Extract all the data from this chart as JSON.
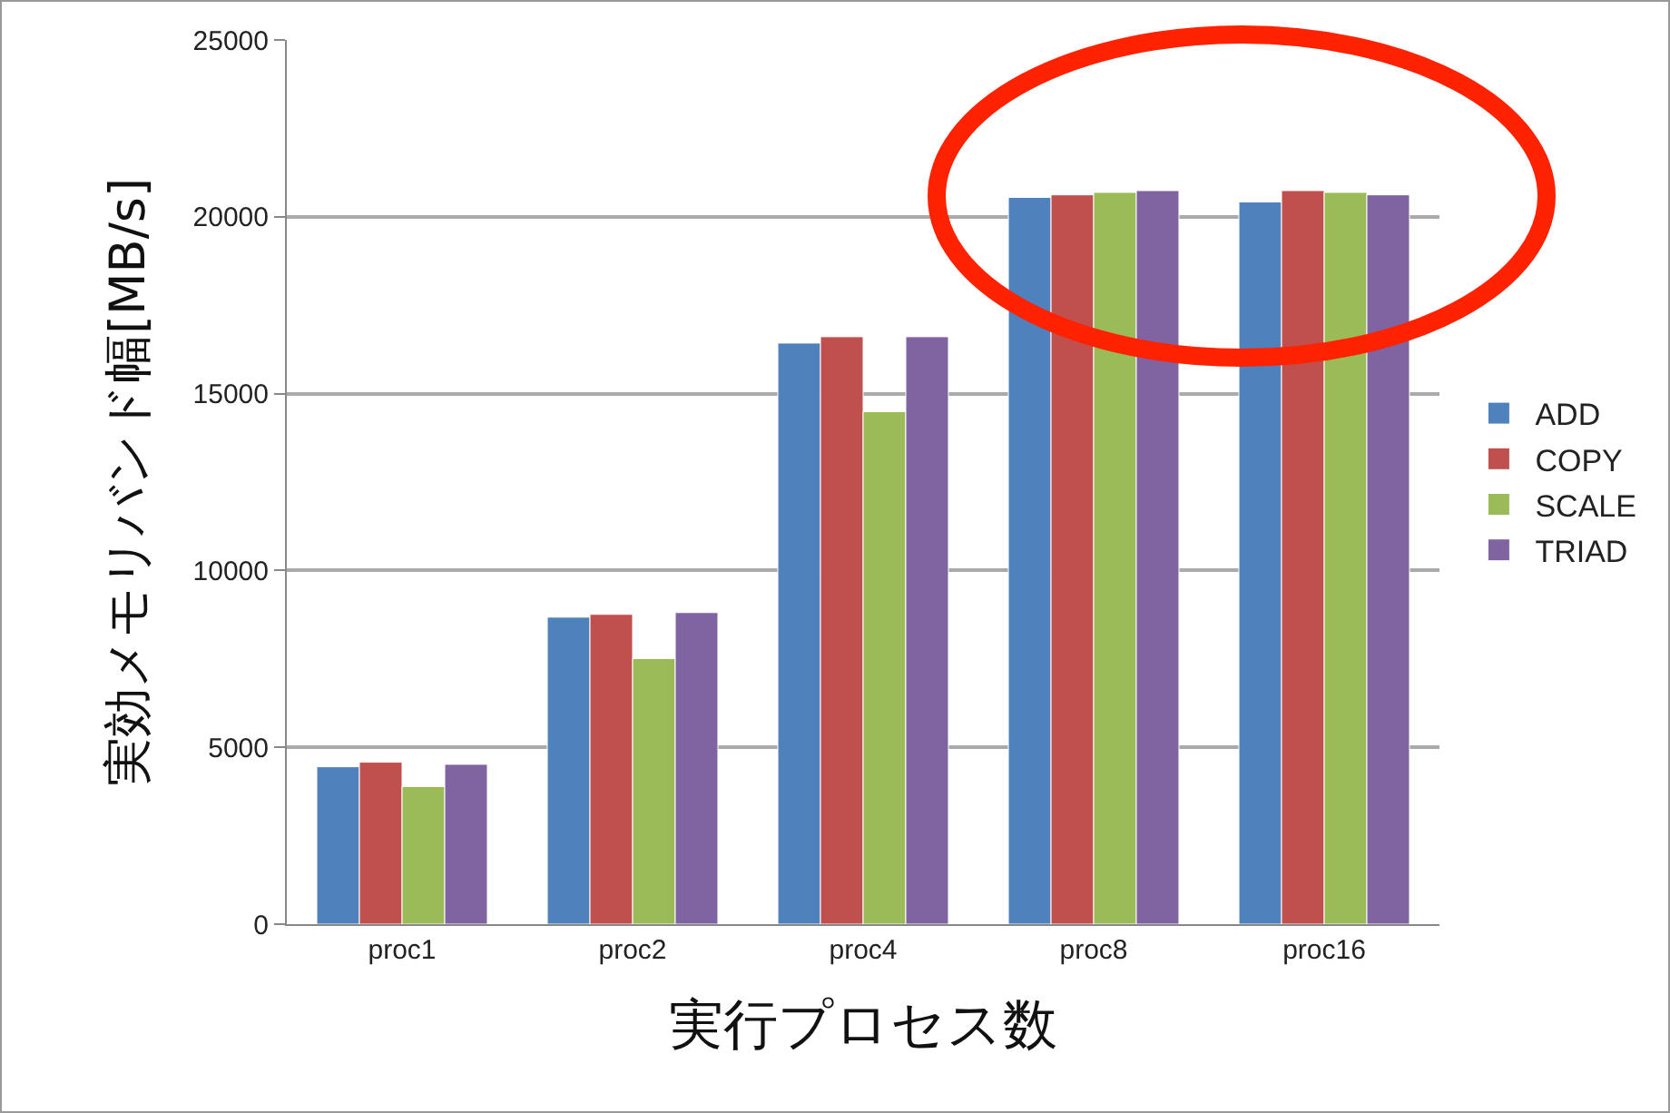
{
  "chart_data": {
    "type": "bar",
    "xlabel": "実行プロセス数",
    "ylabel": "実効メモリバンド幅[MB/s]",
    "categories": [
      "proc1",
      "proc2",
      "proc4",
      "proc8",
      "proc16"
    ],
    "series": [
      {
        "name": "ADD",
        "color": "#4f81bd",
        "values": [
          4450,
          8680,
          16430,
          20550,
          20420
        ]
      },
      {
        "name": "COPY",
        "color": "#c0504d",
        "values": [
          4580,
          8760,
          16610,
          20620,
          20740
        ]
      },
      {
        "name": "SCALE",
        "color": "#9bbb59",
        "values": [
          3890,
          7510,
          14490,
          20690,
          20690
        ]
      },
      {
        "name": "TRIAD",
        "color": "#8064a2",
        "values": [
          4520,
          8810,
          16610,
          20740,
          20620
        ]
      }
    ],
    "ylim": [
      0,
      25000
    ],
    "yticks": [
      0,
      5000,
      10000,
      15000,
      20000,
      25000
    ],
    "grid": "y",
    "legend": "right"
  }
}
